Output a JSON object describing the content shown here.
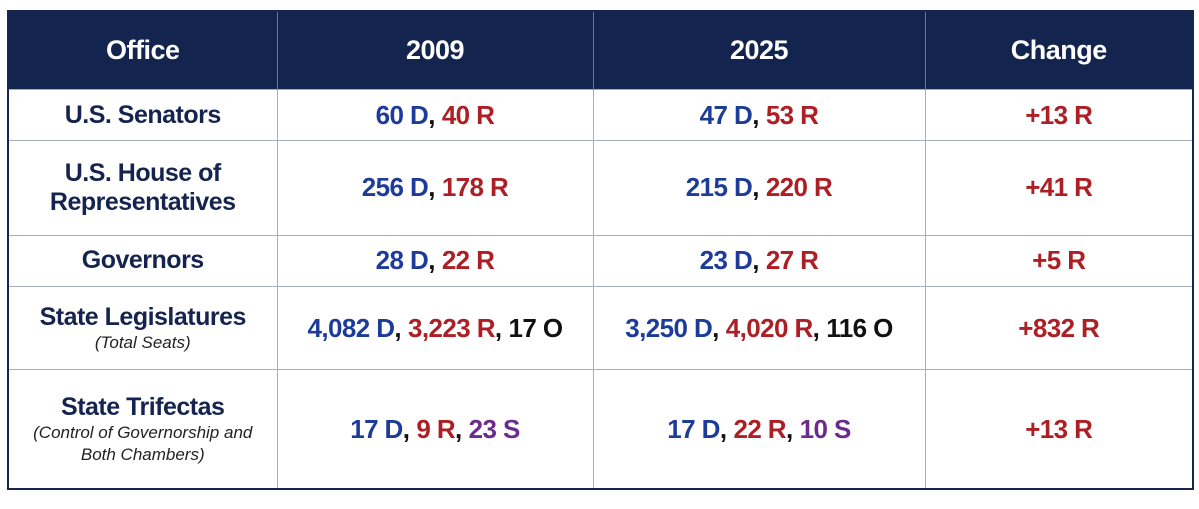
{
  "header": [
    "Office",
    "2009",
    "2025",
    "Change"
  ],
  "separator": ",",
  "party_colors": {
    "D": "#1d3c99",
    "R": "#ad1f24",
    "O": "#111111",
    "S": "#6a2b8c"
  },
  "rows": [
    {
      "office": "U.S. Senators",
      "cells": [
        [
          {
            "text": "60 D",
            "party": "D"
          },
          {
            "text": "40 R",
            "party": "R"
          }
        ],
        [
          {
            "text": "47 D",
            "party": "D"
          },
          {
            "text": "53 R",
            "party": "R"
          }
        ],
        [
          {
            "text": "+13 R",
            "party": "R"
          }
        ]
      ]
    },
    {
      "office": "U.S. House of Representatives",
      "cells": [
        [
          {
            "text": "256 D",
            "party": "D"
          },
          {
            "text": "178 R",
            "party": "R"
          }
        ],
        [
          {
            "text": "215 D",
            "party": "D"
          },
          {
            "text": "220 R",
            "party": "R"
          }
        ],
        [
          {
            "text": "+41 R",
            "party": "R"
          }
        ]
      ]
    },
    {
      "office": "Governors",
      "cells": [
        [
          {
            "text": "28 D",
            "party": "D"
          },
          {
            "text": "22 R",
            "party": "R"
          }
        ],
        [
          {
            "text": "23 D",
            "party": "D"
          },
          {
            "text": "27 R",
            "party": "R"
          }
        ],
        [
          {
            "text": "+5 R",
            "party": "R"
          }
        ]
      ]
    },
    {
      "office": "State Legislatures",
      "note": "(Total Seats)",
      "cells": [
        [
          {
            "text": "4,082 D",
            "party": "D"
          },
          {
            "text": "3,223 R",
            "party": "R"
          },
          {
            "text": "17 O",
            "party": "O"
          }
        ],
        [
          {
            "text": "3,250 D",
            "party": "D"
          },
          {
            "text": "4,020 R",
            "party": "R"
          },
          {
            "text": "116 O",
            "party": "O"
          }
        ],
        [
          {
            "text": "+832 R",
            "party": "R"
          }
        ]
      ]
    },
    {
      "office": "State Trifectas",
      "note": "(Control of Governorship and Both Chambers)",
      "cells": [
        [
          {
            "text": "17 D",
            "party": "D"
          },
          {
            "text": "9 R",
            "party": "R"
          },
          {
            "text": "23 S",
            "party": "S"
          }
        ],
        [
          {
            "text": "17 D",
            "party": "D"
          },
          {
            "text": "22 R",
            "party": "R"
          },
          {
            "text": "10 S",
            "party": "S"
          }
        ],
        [
          {
            "text": "+13 R",
            "party": "R"
          }
        ]
      ]
    }
  ]
}
